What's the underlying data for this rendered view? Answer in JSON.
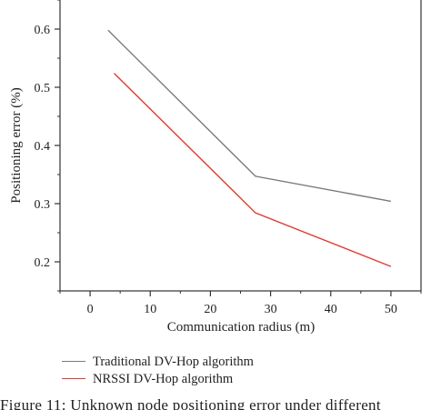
{
  "chart_data": {
    "type": "line",
    "title": "",
    "xlabel": "Communication radius (m)",
    "ylabel": "Positioning error (%)",
    "xlim": [
      -5,
      55
    ],
    "ylim": [
      0.15,
      0.65
    ],
    "xticks": [
      0,
      10,
      20,
      30,
      40,
      50
    ],
    "yticks": [
      0.2,
      0.3,
      0.4,
      0.5,
      0.6
    ],
    "xtick_labels": [
      "0",
      "10",
      "20",
      "30",
      "40",
      "50"
    ],
    "ytick_labels": [
      "0.2",
      "0.3",
      "0.4",
      "0.5",
      "0.6"
    ],
    "grid": false,
    "legend_position": "bottom-left, below plot",
    "series": [
      {
        "name": "Traditional DV-Hop algorithm",
        "color": "#7a7a7a",
        "x": [
          3,
          27.5,
          50
        ],
        "y": [
          0.598,
          0.347,
          0.304
        ]
      },
      {
        "name": "NRSSI DV-Hop algorithm",
        "color": "#e03b2f",
        "x": [
          4,
          27.5,
          50
        ],
        "y": [
          0.524,
          0.284,
          0.192
        ]
      }
    ]
  },
  "caption": "Figure 11: Unknown node positioning error under different"
}
